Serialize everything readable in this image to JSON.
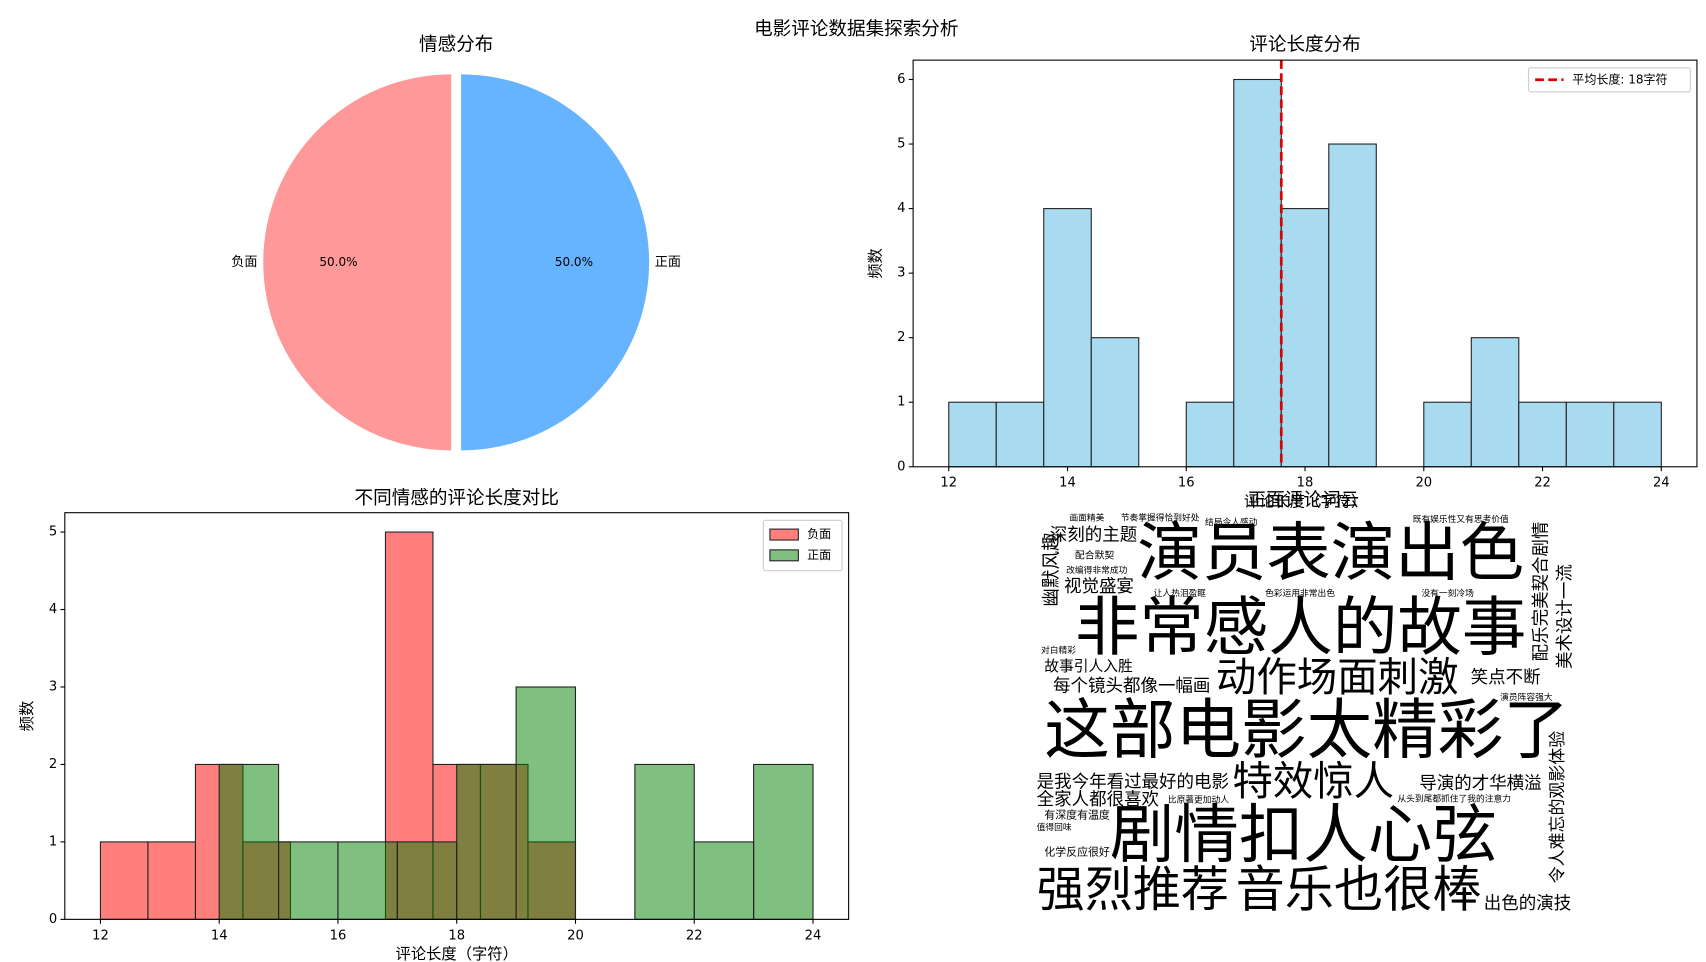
{
  "title": "电影评论数据集探索分析",
  "chart_data": [
    {
      "type": "pie",
      "title": "情感分布",
      "categories": [
        "负面",
        "正面"
      ],
      "values": [
        50,
        50
      ],
      "value_labels": [
        "50.0%",
        "50.0%"
      ],
      "colors": [
        "#ff9999",
        "#66b3ff"
      ]
    },
    {
      "type": "histogram",
      "title": "评论长度分布",
      "xlabel": "评论长度（字符）",
      "ylabel": "频数",
      "bins": [
        12,
        12.8,
        13.6,
        14.4,
        15.2,
        16,
        16.8,
        17.6,
        18.4,
        19.2,
        20,
        20.8,
        21.6,
        22.4,
        23.2,
        24
      ],
      "counts": [
        1,
        1,
        4,
        2,
        0,
        1,
        6,
        4,
        5,
        0,
        1,
        2,
        1,
        1,
        1
      ],
      "color": "#a8dbef",
      "edgecolor": "#222222",
      "mean": 17.6,
      "mean_label": "平均长度: 18字符",
      "mean_color": "#dd0000",
      "legend": "upper right",
      "xlim": [
        11.4,
        24.6
      ],
      "ylim": [
        0,
        6.3
      ],
      "xticks": [
        12,
        14,
        16,
        18,
        20,
        22,
        24
      ],
      "yticks": [
        0,
        1,
        2,
        3,
        4,
        5,
        6
      ]
    },
    {
      "type": "overlay_histogram",
      "title": "不同情感的评论长度对比",
      "xlabel": "评论长度（字符）",
      "ylabel": "频数",
      "legend": "upper right",
      "series": [
        {
          "name": "负面",
          "color": "rgba(255,0,0,0.5)",
          "bins": [
            12,
            12.8,
            13.6,
            14.4,
            15.2,
            16,
            16.8,
            17.6,
            18.4,
            19.2,
            20
          ],
          "counts": [
            1,
            1,
            2,
            1,
            0,
            0,
            5,
            2,
            2,
            1
          ]
        },
        {
          "name": "正面",
          "color": "rgba(0,128,0,0.5)",
          "bins": [
            14,
            15,
            16,
            17,
            18,
            19,
            20,
            21,
            22,
            23,
            24
          ],
          "counts": [
            2,
            1,
            1,
            1,
            2,
            3,
            0,
            2,
            1,
            2
          ]
        }
      ],
      "xlim": [
        11.4,
        24.6
      ],
      "ylim": [
        0,
        5.25
      ],
      "xticks": [
        12,
        14,
        16,
        18,
        20,
        22,
        24
      ],
      "yticks": [
        0,
        1,
        2,
        3,
        4,
        5
      ]
    },
    {
      "type": "wordcloud",
      "title": "正面评论词云",
      "words": [
        {
          "text": "演员表演出色",
          "color": "#1f9e89"
        },
        {
          "text": "非常感人的故事",
          "color": "#3b528b"
        },
        {
          "text": "动作场面刺激",
          "color": "#31688e"
        },
        {
          "text": "这部电影太精彩了",
          "color": "#440154"
        },
        {
          "text": "剧情扣人心弦",
          "color": "#b5de2b"
        },
        {
          "text": "强烈推荐",
          "color": "#26828e"
        },
        {
          "text": "音乐也很棒",
          "color": "#6ece58"
        },
        {
          "text": "特效惊人",
          "color": "#35b779"
        },
        {
          "text": "深刻的主题",
          "color": "#6ece58"
        },
        {
          "text": "视觉盛宴",
          "color": "#31688e"
        },
        {
          "text": "故事引人入胜",
          "color": "#3e4989"
        },
        {
          "text": "每个镜头都像一幅画",
          "color": "#482878"
        },
        {
          "text": "笑点不断",
          "color": "#1f9e89"
        },
        {
          "text": "是我今年看过最好的电影",
          "color": "#3e4989"
        },
        {
          "text": "全家人都很喜欢",
          "color": "#26828e"
        },
        {
          "text": "导演的才华横溢",
          "color": "#26828e"
        },
        {
          "text": "出色的演技",
          "color": "#3e4989"
        },
        {
          "text": "有深度有温度",
          "color": "#414487"
        },
        {
          "text": "化学反应很好",
          "color": "#b5de2b"
        },
        {
          "text": "配合默契",
          "color": "#31688e"
        },
        {
          "text": "画面精美",
          "color": "#3e4989"
        },
        {
          "text": "节奏掌握得恰到好处",
          "color": "#35b779"
        },
        {
          "text": "结局令人感动",
          "color": "#2c728e"
        },
        {
          "text": "既有娱乐性又有思考价值",
          "color": "#482878"
        },
        {
          "text": "改编得非常成功",
          "color": "#31688e"
        },
        {
          "text": "让人热泪盈眶",
          "color": "#3e4989"
        },
        {
          "text": "色彩运用非常出色",
          "color": "#443983"
        },
        {
          "text": "没有一刻冷场",
          "color": "#fde725"
        },
        {
          "text": "对白精彩",
          "color": "#482878"
        },
        {
          "text": "演员阵容强大",
          "color": "#26828e"
        },
        {
          "text": "比原著更加动人",
          "color": "#6ece58"
        },
        {
          "text": "从头到尾都抓住了我的注意力",
          "color": "#26828e"
        },
        {
          "text": "值得回味",
          "color": "#1f9e89"
        },
        {
          "text": "幽默风趣",
          "color": "#6ece58"
        },
        {
          "text": "配乐完美契合剧情",
          "color": "#2c728e"
        },
        {
          "text": "美术设计一流",
          "color": "#b5de2b"
        },
        {
          "text": "令人难忘的观影体验",
          "color": "#3e4989"
        }
      ]
    }
  ]
}
